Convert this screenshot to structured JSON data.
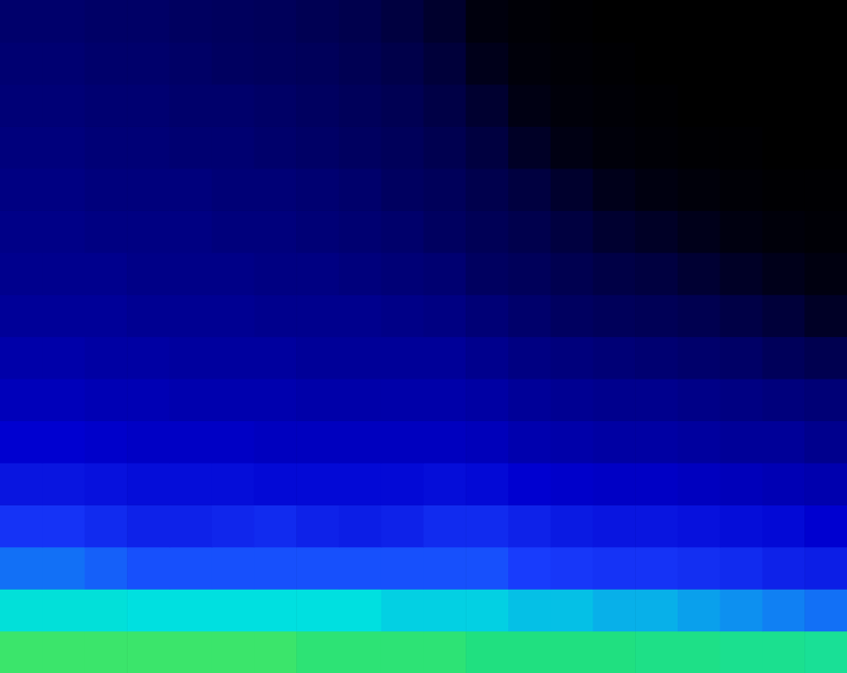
{
  "chart_data": {
    "type": "heatmap",
    "tick_labels": false,
    "cells": [
      [
        90,
        90,
        90,
        90,
        90,
        90,
        90,
        89,
        89,
        89,
        89,
        88,
        88,
        88,
        88,
        87,
        87,
        86,
        86,
        85
      ],
      [
        76,
        76,
        76,
        75,
        75,
        75,
        75,
        75,
        75,
        74,
        74,
        74,
        73,
        73,
        72,
        72,
        71,
        70,
        69,
        68
      ],
      [
        68,
        68,
        67,
        66,
        66,
        66,
        66,
        66,
        66,
        66,
        66,
        66,
        64,
        63,
        62,
        62,
        61,
        60,
        58,
        57
      ],
      [
        62,
        62,
        60,
        58,
        58,
        59,
        60,
        58,
        57,
        58,
        60,
        60,
        58,
        56,
        55,
        55,
        54,
        53,
        52,
        50
      ],
      [
        55,
        55,
        54,
        53,
        53,
        53,
        52,
        52,
        52,
        52,
        53,
        52,
        50,
        49,
        48,
        48,
        47,
        46,
        45,
        44
      ],
      [
        50,
        50,
        49,
        48,
        48,
        48,
        47,
        47,
        47,
        47,
        47,
        46,
        44,
        43,
        42,
        42,
        41,
        40,
        40,
        38
      ],
      [
        46,
        46,
        45,
        45,
        44,
        44,
        44,
        43,
        43,
        43,
        43,
        42,
        40,
        39,
        38,
        38,
        37,
        36,
        35,
        34
      ],
      [
        43,
        43,
        42,
        42,
        41,
        41,
        41,
        40,
        40,
        40,
        40,
        38,
        36,
        35,
        34,
        33,
        32,
        31,
        28,
        25
      ],
      [
        40,
        40,
        40,
        39,
        39,
        39,
        38,
        38,
        38,
        37,
        36,
        34,
        32,
        30,
        28,
        27,
        25,
        22,
        18,
        12
      ],
      [
        38,
        38,
        38,
        37,
        37,
        37,
        36,
        36,
        35,
        34,
        33,
        30,
        28,
        25,
        22,
        20,
        16,
        12,
        8,
        5
      ],
      [
        37,
        37,
        36,
        36,
        36,
        35,
        35,
        34,
        33,
        32,
        30,
        27,
        24,
        20,
        15,
        12,
        8,
        5,
        3,
        2
      ],
      [
        36,
        36,
        35,
        35,
        35,
        34,
        34,
        33,
        32,
        30,
        28,
        24,
        20,
        14,
        8,
        5,
        3,
        2,
        1,
        1
      ],
      [
        35,
        35,
        34,
        34,
        33,
        33,
        32,
        31,
        30,
        28,
        25,
        20,
        12,
        6,
        3,
        2,
        1,
        1,
        0,
        0
      ],
      [
        34,
        34,
        33,
        33,
        32,
        32,
        31,
        30,
        28,
        26,
        22,
        15,
        6,
        3,
        2,
        1,
        0,
        0,
        0,
        0
      ],
      [
        33,
        33,
        32,
        32,
        31,
        30,
        29,
        28,
        26,
        23,
        18,
        8,
        3,
        2,
        1,
        0,
        0,
        0,
        0,
        0
      ],
      [
        32,
        32,
        31,
        31,
        30,
        29,
        28,
        26,
        24,
        20,
        14,
        4,
        2,
        1,
        0,
        0,
        0,
        0,
        0,
        0
      ]
    ]
  }
}
